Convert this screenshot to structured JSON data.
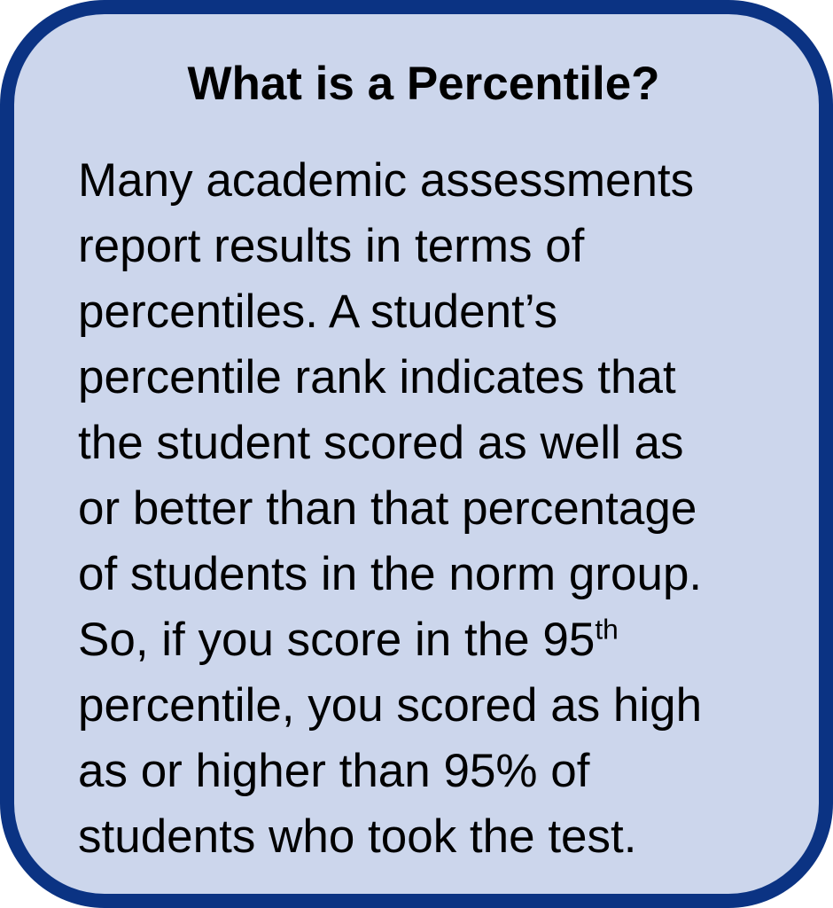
{
  "callout": {
    "title": "What is a Percentile?",
    "paragraph_lines": [
      [
        "Many academic assessments"
      ],
      [
        "report results in terms of"
      ],
      [
        "percentiles. A student’s"
      ],
      [
        "percentile rank indicates that"
      ],
      [
        "the student scored as well as"
      ],
      [
        "or better than that percentage"
      ],
      [
        "of students in the norm group."
      ],
      [
        "So, if you score in the 95",
        {
          "sup": "th"
        }
      ],
      [
        "percentile, you scored as high"
      ],
      [
        "as or higher than 95% of"
      ],
      [
        "students who took the test."
      ]
    ],
    "colors": {
      "border": "#0b3383",
      "background": "#ccd6ec",
      "text": "#000000",
      "page_background": "#ffffff"
    }
  }
}
